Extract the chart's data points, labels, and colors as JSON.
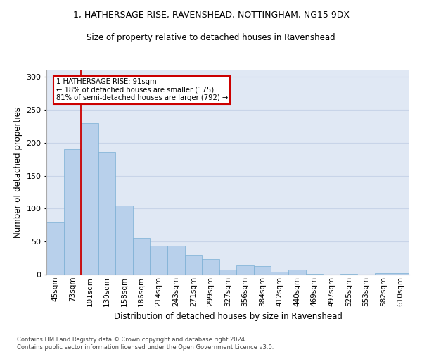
{
  "title_line1": "1, HATHERSAGE RISE, RAVENSHEAD, NOTTINGHAM, NG15 9DX",
  "title_line2": "Size of property relative to detached houses in Ravenshead",
  "xlabel": "Distribution of detached houses by size in Ravenshead",
  "ylabel": "Number of detached properties",
  "categories": [
    "45sqm",
    "73sqm",
    "101sqm",
    "130sqm",
    "158sqm",
    "186sqm",
    "214sqm",
    "243sqm",
    "271sqm",
    "299sqm",
    "327sqm",
    "356sqm",
    "384sqm",
    "412sqm",
    "440sqm",
    "469sqm",
    "497sqm",
    "525sqm",
    "553sqm",
    "582sqm",
    "610sqm"
  ],
  "values": [
    79,
    190,
    230,
    186,
    105,
    56,
    44,
    44,
    30,
    23,
    8,
    14,
    13,
    4,
    7,
    1,
    0,
    1,
    0,
    2,
    2
  ],
  "bar_color": "#b8d0eb",
  "bar_edge_color": "#7aafd4",
  "annotation_text": "1 HATHERSAGE RISE: 91sqm\n← 18% of detached houses are smaller (175)\n81% of semi-detached houses are larger (792) →",
  "annotation_box_color": "#ffffff",
  "annotation_box_edge_color": "#cc0000",
  "footnote": "Contains HM Land Registry data © Crown copyright and database right 2024.\nContains public sector information licensed under the Open Government Licence v3.0.",
  "ylim": [
    0,
    310
  ],
  "yticks": [
    0,
    50,
    100,
    150,
    200,
    250,
    300
  ],
  "grid_color": "#c8d4e8",
  "background_color": "#e0e8f4"
}
